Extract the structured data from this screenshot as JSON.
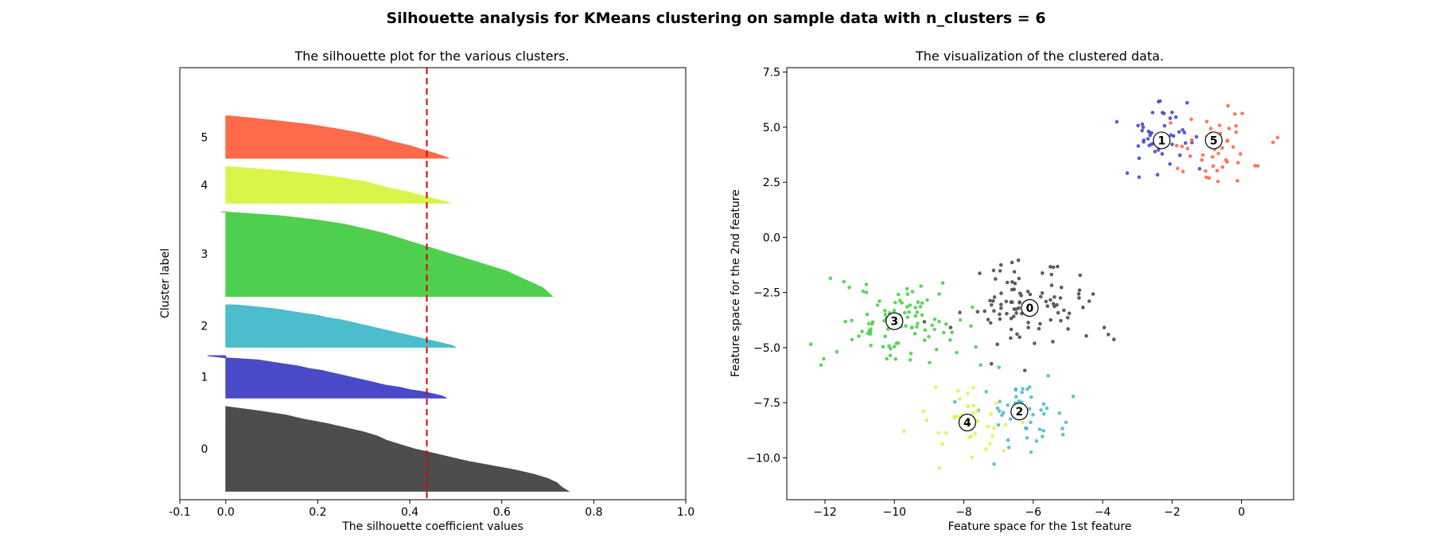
{
  "suptitle": "Silhouette analysis for KMeans clustering on sample data with n_clusters = 6",
  "chart_data": [
    {
      "type": "silhouette",
      "title": "The silhouette plot for the various clusters.",
      "xlabel": "The silhouette coefficient values",
      "ylabel": "Cluster label",
      "xlim": [
        -0.1,
        1.0
      ],
      "xticks": [
        "-0.1",
        "0.0",
        "0.2",
        "0.4",
        "0.6",
        "0.8",
        "1.0"
      ],
      "xtick_values": [
        -0.1,
        0.0,
        0.2,
        0.4,
        0.6,
        0.8,
        1.0
      ],
      "ylim": [
        0,
        510
      ],
      "average_silhouette": 0.437,
      "clusters": [
        {
          "label": "0",
          "color": "#4d4d4d",
          "y_lower": 10,
          "size": 100,
          "profile": [
            [
              0,
              0.745
            ],
            [
              0.05,
              0.73
            ],
            [
              0.1,
              0.72
            ],
            [
              0.15,
              0.7
            ],
            [
              0.2,
              0.67
            ],
            [
              0.25,
              0.63
            ],
            [
              0.3,
              0.58
            ],
            [
              0.35,
              0.53
            ],
            [
              0.4,
              0.49
            ],
            [
              0.45,
              0.45
            ],
            [
              0.5,
              0.41
            ],
            [
              0.55,
              0.38
            ],
            [
              0.6,
              0.35
            ],
            [
              0.65,
              0.33
            ],
            [
              0.7,
              0.3
            ],
            [
              0.75,
              0.26
            ],
            [
              0.8,
              0.22
            ],
            [
              0.85,
              0.17
            ],
            [
              0.9,
              0.13
            ],
            [
              0.95,
              0.07
            ],
            [
              1,
              0.0
            ]
          ]
        },
        {
          "label": "1",
          "color": "#4a4ac8",
          "y_lower": 120,
          "size": 50,
          "profile": [
            [
              0,
              0.48
            ],
            [
              0.05,
              0.47
            ],
            [
              0.1,
              0.45
            ],
            [
              0.15,
              0.43
            ],
            [
              0.2,
              0.4
            ],
            [
              0.25,
              0.38
            ],
            [
              0.3,
              0.35
            ],
            [
              0.35,
              0.33
            ],
            [
              0.4,
              0.31
            ],
            [
              0.45,
              0.29
            ],
            [
              0.5,
              0.27
            ],
            [
              0.55,
              0.25
            ],
            [
              0.6,
              0.23
            ],
            [
              0.65,
              0.21
            ],
            [
              0.7,
              0.18
            ],
            [
              0.75,
              0.16
            ],
            [
              0.8,
              0.13
            ],
            [
              0.85,
              0.1
            ],
            [
              0.9,
              0.07
            ],
            [
              0.95,
              0.0
            ],
            [
              1,
              -0.04
            ]
          ]
        },
        {
          "label": "2",
          "color": "#4bbdcc",
          "y_lower": 180,
          "size": 50,
          "profile": [
            [
              0,
              0.5
            ],
            [
              0.05,
              0.49
            ],
            [
              0.1,
              0.47
            ],
            [
              0.15,
              0.45
            ],
            [
              0.2,
              0.43
            ],
            [
              0.25,
              0.41
            ],
            [
              0.3,
              0.39
            ],
            [
              0.35,
              0.37
            ],
            [
              0.4,
              0.35
            ],
            [
              0.45,
              0.33
            ],
            [
              0.5,
              0.31
            ],
            [
              0.55,
              0.29
            ],
            [
              0.6,
              0.27
            ],
            [
              0.65,
              0.25
            ],
            [
              0.7,
              0.22
            ],
            [
              0.75,
              0.2
            ],
            [
              0.8,
              0.17
            ],
            [
              0.85,
              0.14
            ],
            [
              0.9,
              0.11
            ],
            [
              0.95,
              0.07
            ],
            [
              1,
              0.02
            ]
          ]
        },
        {
          "label": "3",
          "color": "#4ed04e",
          "y_lower": 240,
          "size": 100,
          "profile": [
            [
              0,
              0.71
            ],
            [
              0.05,
              0.7
            ],
            [
              0.1,
              0.69
            ],
            [
              0.15,
              0.67
            ],
            [
              0.2,
              0.65
            ],
            [
              0.25,
              0.63
            ],
            [
              0.3,
              0.61
            ],
            [
              0.35,
              0.58
            ],
            [
              0.4,
              0.55
            ],
            [
              0.45,
              0.52
            ],
            [
              0.5,
              0.49
            ],
            [
              0.55,
              0.46
            ],
            [
              0.6,
              0.43
            ],
            [
              0.65,
              0.4
            ],
            [
              0.7,
              0.37
            ],
            [
              0.75,
              0.34
            ],
            [
              0.8,
              0.3
            ],
            [
              0.85,
              0.26
            ],
            [
              0.9,
              0.2
            ],
            [
              0.95,
              0.12
            ],
            [
              1,
              -0.01
            ]
          ]
        },
        {
          "label": "4",
          "color": "#daf54a",
          "y_lower": 350,
          "size": 43,
          "profile": [
            [
              0,
              0.49
            ],
            [
              0.1,
              0.46
            ],
            [
              0.2,
              0.43
            ],
            [
              0.3,
              0.4
            ],
            [
              0.4,
              0.36
            ],
            [
              0.5,
              0.33
            ],
            [
              0.6,
              0.3
            ],
            [
              0.7,
              0.25
            ],
            [
              0.8,
              0.19
            ],
            [
              0.9,
              0.11
            ],
            [
              1,
              0.01
            ]
          ]
        },
        {
          "label": "5",
          "color": "#ff6a4a",
          "y_lower": 403,
          "size": 50,
          "profile": [
            [
              0,
              0.485
            ],
            [
              0.1,
              0.46
            ],
            [
              0.2,
              0.43
            ],
            [
              0.3,
              0.4
            ],
            [
              0.4,
              0.36
            ],
            [
              0.5,
              0.33
            ],
            [
              0.6,
              0.29
            ],
            [
              0.7,
              0.24
            ],
            [
              0.8,
              0.18
            ],
            [
              0.9,
              0.1
            ],
            [
              1,
              0.01
            ]
          ]
        }
      ]
    },
    {
      "type": "scatter",
      "title": "The visualization of the clustered data.",
      "xlabel": "Feature space for the 1st feature",
      "ylabel": "Feature space for the 2nd feature",
      "xlim": [
        -13.1,
        1.5
      ],
      "ylim": [
        -11.9,
        7.7
      ],
      "xticks": [
        "−12",
        "−10",
        "−8",
        "−6",
        "−4",
        "−2",
        "0"
      ],
      "xtick_values": [
        -12,
        -10,
        -8,
        -6,
        -4,
        -2,
        0
      ],
      "yticks": [
        "7.5",
        "5.0",
        "2.5",
        "0.0",
        "−2.5",
        "−5.0",
        "−7.5",
        "−10.0"
      ],
      "ytick_values": [
        7.5,
        5.0,
        2.5,
        0.0,
        -2.5,
        -5.0,
        -7.5,
        -10.0
      ],
      "clusters": [
        {
          "label": "0",
          "color": "#4d4d4d",
          "center": [
            -6.1,
            -3.2
          ],
          "count": 100,
          "spread": [
            1.0,
            1.0
          ]
        },
        {
          "label": "1",
          "color": "#4a4ac8",
          "center": [
            -2.3,
            4.4
          ],
          "count": 50,
          "spread": [
            0.6,
            0.9
          ]
        },
        {
          "label": "2",
          "color": "#4bbdcc",
          "center": [
            -6.4,
            -7.9
          ],
          "count": 50,
          "spread": [
            0.7,
            0.8
          ]
        },
        {
          "label": "3",
          "color": "#4ed04e",
          "center": [
            -10.0,
            -3.8
          ],
          "count": 100,
          "spread": [
            1.0,
            0.9
          ]
        },
        {
          "label": "4",
          "color": "#daf54a",
          "center": [
            -7.9,
            -8.4
          ],
          "count": 43,
          "spread": [
            0.6,
            0.8
          ]
        },
        {
          "label": "5",
          "color": "#ff6a4a",
          "center": [
            -0.8,
            4.4
          ],
          "count": 50,
          "spread": [
            0.7,
            0.9
          ]
        }
      ]
    }
  ]
}
